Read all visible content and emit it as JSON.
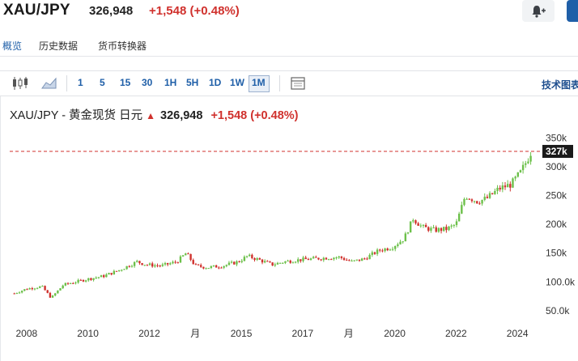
{
  "header": {
    "symbol": "XAU/JPY",
    "price": "326,948",
    "change": "+1,548 (+0.48%)",
    "alert_icon": "bell-plus-icon"
  },
  "tabs": [
    {
      "label": "概览",
      "active": true
    },
    {
      "label": "历史数据",
      "active": false
    },
    {
      "label": "货币转换器",
      "active": false
    }
  ],
  "toolbar": {
    "chart_type_icons": [
      "candlestick-icon",
      "area-chart-icon"
    ],
    "timeframes": [
      "1",
      "5",
      "15",
      "30",
      "1H",
      "5H",
      "1D",
      "1W",
      "1M"
    ],
    "selected_timeframe": "1M",
    "settings_icon": "chart-settings-icon",
    "right_label": "技术图表"
  },
  "chart": {
    "title_symbol": "XAU/JPY - 黄金现货 日元",
    "title_price": "326,948",
    "title_change": "+1,548 (+0.48%)",
    "up_color": "#6cc04a",
    "down_color": "#d0312d",
    "last_label": "327k"
  },
  "chart_data": {
    "type": "candlestick",
    "x_tick_labels": [
      "2008",
      "2010",
      "2012",
      "月",
      "2015",
      "2017",
      "月",
      "2020",
      "2022",
      "2024"
    ],
    "y_tick_labels": [
      "350k",
      "300k",
      "250k",
      "200k",
      "150k",
      "100.0k",
      "50.0k"
    ],
    "y_ticks": [
      350000,
      300000,
      250000,
      200000,
      150000,
      100000,
      50000
    ],
    "ylim": [
      30000,
      365000
    ],
    "x_range": [
      "2007-06",
      "2024-06"
    ],
    "last_value": 326948,
    "reference_line": 326948,
    "series": [
      {
        "values": [
          [
            2007.6,
            80000
          ],
          [
            2008.0,
            88000
          ],
          [
            2008.5,
            92000
          ],
          [
            2008.8,
            72000
          ],
          [
            2009.2,
            95000
          ],
          [
            2009.6,
            100000
          ],
          [
            2010.0,
            105000
          ],
          [
            2010.5,
            110000
          ],
          [
            2011.0,
            120000
          ],
          [
            2011.6,
            135000
          ],
          [
            2011.9,
            130000
          ],
          [
            2012.4,
            128000
          ],
          [
            2012.9,
            135000
          ],
          [
            2013.2,
            150000
          ],
          [
            2013.5,
            128000
          ],
          [
            2013.9,
            125000
          ],
          [
            2014.4,
            128000
          ],
          [
            2014.9,
            135000
          ],
          [
            2015.2,
            145000
          ],
          [
            2015.6,
            138000
          ],
          [
            2016.0,
            130000
          ],
          [
            2016.4,
            135000
          ],
          [
            2016.8,
            138000
          ],
          [
            2017.3,
            140000
          ],
          [
            2017.8,
            142000
          ],
          [
            2018.2,
            143000
          ],
          [
            2018.6,
            135000
          ],
          [
            2019.0,
            140000
          ],
          [
            2019.5,
            155000
          ],
          [
            2019.9,
            160000
          ],
          [
            2020.3,
            175000
          ],
          [
            2020.6,
            210000
          ],
          [
            2020.9,
            195000
          ],
          [
            2021.3,
            190000
          ],
          [
            2021.7,
            192000
          ],
          [
            2022.0,
            200000
          ],
          [
            2022.3,
            250000
          ],
          [
            2022.7,
            240000
          ],
          [
            2023.0,
            245000
          ],
          [
            2023.4,
            262000
          ],
          [
            2023.8,
            270000
          ],
          [
            2024.1,
            290000
          ],
          [
            2024.3,
            310000
          ],
          [
            2024.45,
            326948
          ]
        ]
      }
    ]
  }
}
